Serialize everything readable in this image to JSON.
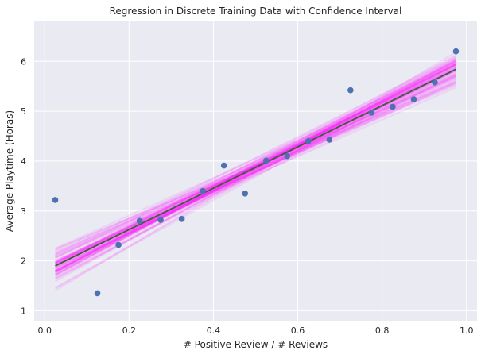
{
  "chart_data": {
    "type": "scatter",
    "title": "Regression in Discrete Training Data with Confidence Interval",
    "xlabel": "# Positive Review / # Reviews",
    "ylabel": "Average Playtime (Horas)",
    "xlim": [
      -0.025,
      1.025
    ],
    "ylim": [
      0.8,
      6.8
    ],
    "x_ticks": [
      0.0,
      0.2,
      0.4,
      0.6,
      0.8,
      1.0
    ],
    "x_tick_labels": [
      "0.0",
      "0.2",
      "0.4",
      "0.6",
      "0.8",
      "1.0"
    ],
    "y_ticks": [
      1,
      2,
      3,
      4,
      5,
      6
    ],
    "y_tick_labels": [
      "1",
      "2",
      "3",
      "4",
      "5",
      "6"
    ],
    "grid": true,
    "background_color": "#eaeaf2",
    "points": {
      "color": "#4c72b0",
      "x": [
        0.025,
        0.125,
        0.175,
        0.225,
        0.275,
        0.325,
        0.375,
        0.425,
        0.475,
        0.525,
        0.575,
        0.625,
        0.675,
        0.725,
        0.775,
        0.825,
        0.875,
        0.925,
        0.975
      ],
      "y": [
        3.22,
        1.35,
        2.32,
        2.8,
        2.82,
        2.84,
        3.4,
        3.91,
        3.35,
        4.01,
        4.1,
        4.4,
        4.43,
        5.42,
        4.97,
        5.09,
        5.24,
        5.58,
        6.2
      ]
    },
    "regression_line": {
      "color": "#3a5f3a",
      "x": [
        0.025,
        0.975
      ],
      "y": [
        1.9,
        5.84
      ]
    },
    "confidence_band": {
      "color": "#ff00ff",
      "samples": 80,
      "slope_spread": 0.45,
      "intercept_spread": 0.22
    }
  }
}
